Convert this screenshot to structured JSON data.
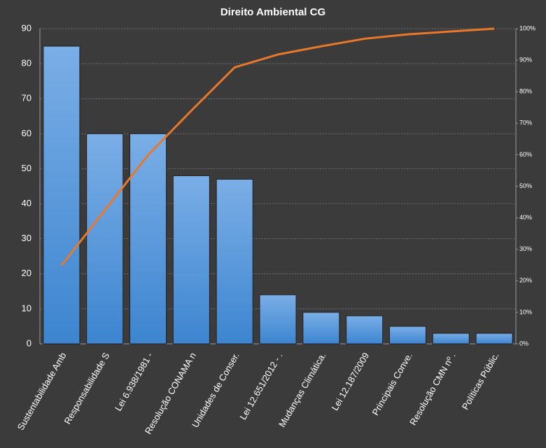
{
  "chart_data": {
    "type": "pareto",
    "title": "Direito  Ambiental  CG",
    "categories": [
      "Sustentabilidade Amb",
      "Responsabilidade S",
      "Lei 6.938/1981 -",
      "Resolução CONAMA n",
      "Unidades de Conser.",
      "Lei 12.651/2012 -  .",
      "Mudanças Climática.",
      "Lei 12.187/2009",
      "Principais Conve.",
      "Resolução CMN nº .",
      "Políticas Públic."
    ],
    "series": [
      {
        "color": "#4a8fd8",
        "values": [
          85,
          60,
          60,
          48,
          47,
          14,
          9,
          8,
          5,
          3,
          3
        ]
      },
      {
        "color": "#e8782a",
        "axis": "y2",
        "values": [
          24.9,
          42.4,
          59.9,
          74.0,
          87.7,
          91.8,
          94.4,
          96.8,
          98.2,
          99.1,
          100
        ]
      }
    ],
    "ylim": [
      0,
      90
    ],
    "yticks": [
      0,
      10,
      20,
      30,
      40,
      50,
      60,
      70,
      80,
      90
    ],
    "y2lim": [
      0,
      100
    ],
    "y2ticks": [
      {
        "value": 0,
        "label": "0%"
      },
      {
        "value": 10,
        "label": "10%"
      },
      {
        "value": 20,
        "label": "20%"
      },
      {
        "value": 30,
        "label": "30%"
      },
      {
        "value": 40,
        "label": "40%"
      },
      {
        "value": 50,
        "label": "50%"
      },
      {
        "value": 60,
        "label": "60%"
      },
      {
        "value": 70,
        "label": "70%"
      },
      {
        "value": 80,
        "label": "80%"
      },
      {
        "value": 90,
        "label": "90%"
      },
      {
        "value": 100,
        "label": "100%"
      }
    ],
    "grid": true
  }
}
